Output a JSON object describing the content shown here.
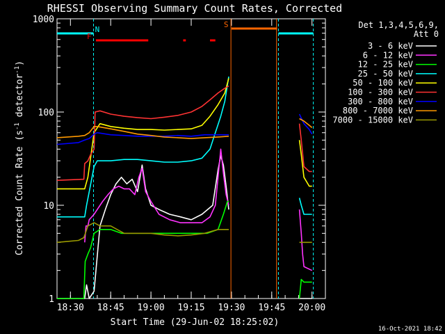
{
  "chart_data": {
    "type": "line",
    "title": "RHESSI Observing Summary Count Rates, Corrected",
    "xlabel": "Start Time (29-Jun-02 18:25:02)",
    "ylabel": "Corrected Count Rate (s⁻¹ detector⁻¹)",
    "ylabel_parts": {
      "main": "Corrected Count Rate (s",
      "exp1": "-1",
      "mid": " detector",
      "exp2": "-1",
      "end": ")"
    },
    "y_scale": "log",
    "ylim": [
      1,
      1000
    ],
    "xlim_minutes_after_1825": [
      0,
      100
    ],
    "x_ticks": [
      {
        "label": "18:30",
        "t": 5
      },
      {
        "label": "18:45",
        "t": 20
      },
      {
        "label": "19:00",
        "t": 35
      },
      {
        "label": "19:15",
        "t": 50
      },
      {
        "label": "19:30",
        "t": 65
      },
      {
        "label": "19:45",
        "t": 80
      },
      {
        "label": "20:00",
        "t": 95
      }
    ],
    "y_ticks": [
      {
        "label": "1",
        "v": 1
      },
      {
        "label": "10",
        "v": 10
      },
      {
        "label": "100",
        "v": 100
      },
      {
        "label": "1000",
        "v": 1000
      }
    ],
    "legend": {
      "header": [
        "Det 1,3,4,5,6,9,",
        "Att 0"
      ],
      "placement": "right"
    },
    "series": [
      {
        "name": "3 - 6 keV",
        "color": "#ffffff",
        "points": [
          [
            0,
            1
          ],
          [
            10.3,
            1
          ],
          [
            11,
            1.4
          ],
          [
            12,
            1
          ],
          [
            13.8,
            1.2
          ],
          [
            14.5,
            2
          ],
          [
            16,
            6
          ],
          [
            18,
            9
          ],
          [
            20,
            13
          ],
          [
            22,
            17
          ],
          [
            24,
            20
          ],
          [
            26,
            17
          ],
          [
            28,
            19
          ],
          [
            30,
            14
          ],
          [
            31.7,
            27
          ],
          [
            33,
            15
          ],
          [
            35,
            10
          ],
          [
            38,
            9
          ],
          [
            42,
            8
          ],
          [
            46,
            7.5
          ],
          [
            50,
            7
          ],
          [
            54,
            8
          ],
          [
            58,
            10
          ],
          [
            60,
            24
          ],
          [
            61,
            34
          ],
          [
            62,
            27
          ],
          [
            63,
            16
          ],
          [
            64,
            9
          ]
        ]
      },
      {
        "name": "6 - 12 keV",
        "color": "#ff33ff",
        "points": [
          [
            10.3,
            4
          ],
          [
            10.8,
            6
          ],
          [
            11.5,
            6
          ],
          [
            12,
            7
          ],
          [
            13.8,
            8
          ],
          [
            15,
            9
          ],
          [
            17,
            11
          ],
          [
            19,
            13
          ],
          [
            21,
            15
          ],
          [
            23,
            16
          ],
          [
            25,
            15
          ],
          [
            27,
            15
          ],
          [
            29,
            13
          ],
          [
            30.5,
            20
          ],
          [
            31.7,
            25
          ],
          [
            33,
            14
          ],
          [
            35,
            11
          ],
          [
            38,
            8
          ],
          [
            42,
            7
          ],
          [
            46,
            6.5
          ],
          [
            50,
            6.5
          ],
          [
            54,
            6.5
          ],
          [
            57,
            7.5
          ],
          [
            59,
            10
          ],
          [
            60,
            20
          ],
          [
            61,
            40
          ],
          [
            62,
            22
          ],
          [
            63,
            13
          ],
          [
            64,
            10
          ]
        ]
      },
      {
        "name": "12 - 25 keV",
        "color": "#00ff00",
        "points": [
          [
            0,
            1
          ],
          [
            10,
            1
          ],
          [
            10.5,
            2.5
          ],
          [
            11.5,
            3
          ],
          [
            12.5,
            3.5
          ],
          [
            13.8,
            5
          ],
          [
            16,
            5.5
          ],
          [
            20,
            5.5
          ],
          [
            24,
            5
          ],
          [
            28,
            5
          ],
          [
            32,
            5
          ],
          [
            36,
            5
          ],
          [
            40,
            5
          ],
          [
            44,
            5
          ],
          [
            48,
            5
          ],
          [
            52,
            5
          ],
          [
            56,
            5
          ],
          [
            60,
            5.5
          ],
          [
            62,
            8
          ],
          [
            63.5,
            11
          ],
          [
            64,
            11
          ]
        ]
      },
      {
        "name": "25 - 50 keV",
        "color": "#00ffff",
        "points": [
          [
            0,
            7.5
          ],
          [
            8,
            7.5
          ],
          [
            10.3,
            7.5
          ],
          [
            11,
            10
          ],
          [
            11.8,
            13
          ],
          [
            13.8,
            26
          ],
          [
            15,
            30
          ],
          [
            20,
            30
          ],
          [
            25,
            31
          ],
          [
            30,
            31
          ],
          [
            35,
            30
          ],
          [
            40,
            29
          ],
          [
            45,
            29
          ],
          [
            50,
            30
          ],
          [
            54,
            32
          ],
          [
            57,
            40
          ],
          [
            59,
            60
          ],
          [
            61,
            90
          ],
          [
            62.5,
            130
          ],
          [
            64,
            240
          ]
        ]
      },
      {
        "name": "50 - 100 keV",
        "color": "#ffff00",
        "points": [
          [
            0,
            15
          ],
          [
            10,
            15
          ],
          [
            10.3,
            15
          ],
          [
            11.5,
            20
          ],
          [
            13.8,
            60
          ],
          [
            16,
            75
          ],
          [
            20,
            70
          ],
          [
            25,
            67
          ],
          [
            30,
            65
          ],
          [
            35,
            65
          ],
          [
            40,
            64
          ],
          [
            45,
            65
          ],
          [
            50,
            66
          ],
          [
            54,
            72
          ],
          [
            57,
            90
          ],
          [
            60,
            120
          ],
          [
            62.5,
            160
          ],
          [
            64,
            230
          ]
        ]
      },
      {
        "name": "100 - 300 keV",
        "color": "#ff3333",
        "points": [
          [
            0,
            18.5
          ],
          [
            10,
            19
          ],
          [
            10.3,
            28
          ],
          [
            11.5,
            30
          ],
          [
            12.5,
            35
          ],
          [
            13.8,
            40
          ],
          [
            14.2,
            100
          ],
          [
            16,
            103
          ],
          [
            20,
            95
          ],
          [
            25,
            90
          ],
          [
            30,
            87
          ],
          [
            35,
            85
          ],
          [
            40,
            88
          ],
          [
            45,
            92
          ],
          [
            50,
            100
          ],
          [
            54,
            115
          ],
          [
            57,
            135
          ],
          [
            60,
            160
          ],
          [
            62.5,
            180
          ],
          [
            64,
            190
          ]
        ]
      },
      {
        "name": "300 - 800 keV",
        "color": "#0000ff",
        "points": [
          [
            0,
            45
          ],
          [
            8,
            47
          ],
          [
            10.3,
            50
          ],
          [
            12,
            52
          ],
          [
            13.8,
            58
          ],
          [
            15,
            60
          ],
          [
            20,
            57
          ],
          [
            25,
            56
          ],
          [
            30,
            55
          ],
          [
            35,
            55
          ],
          [
            40,
            55
          ],
          [
            45,
            56
          ],
          [
            50,
            55
          ],
          [
            55,
            57
          ],
          [
            60,
            57
          ],
          [
            64,
            57
          ]
        ]
      },
      {
        "name": "800 - 7000 keV",
        "color": "#ff9900",
        "points": [
          [
            0,
            53
          ],
          [
            8,
            55
          ],
          [
            10.3,
            56
          ],
          [
            12,
            60
          ],
          [
            13.8,
            70
          ],
          [
            15,
            70
          ],
          [
            20,
            66
          ],
          [
            25,
            62
          ],
          [
            30,
            58
          ],
          [
            35,
            56
          ],
          [
            40,
            54
          ],
          [
            45,
            53
          ],
          [
            50,
            52
          ],
          [
            55,
            53
          ],
          [
            60,
            54
          ],
          [
            64,
            55
          ]
        ]
      },
      {
        "name": "7000 - 15000 keV",
        "color": "#999900",
        "points": [
          [
            0,
            4
          ],
          [
            4,
            4.1
          ],
          [
            8,
            4.2
          ],
          [
            10,
            4.5
          ],
          [
            11.5,
            6
          ],
          [
            13.8,
            6.5
          ],
          [
            16,
            6
          ],
          [
            20,
            6
          ],
          [
            25,
            5
          ],
          [
            30,
            5
          ],
          [
            35,
            5
          ],
          [
            40,
            4.8
          ],
          [
            45,
            4.7
          ],
          [
            50,
            4.8
          ],
          [
            55,
            5
          ],
          [
            60,
            5.5
          ],
          [
            64,
            5.5
          ]
        ]
      }
    ],
    "series_after_gap": [
      {
        "name": "3 - 6 keV",
        "points": [
          [
            90.3,
            1
          ],
          [
            91,
            1
          ],
          [
            92,
            1
          ],
          [
            95,
            1
          ]
        ]
      },
      {
        "name": "6 - 12 keV",
        "points": [
          [
            90.3,
            9
          ],
          [
            91,
            5
          ],
          [
            91.5,
            3
          ],
          [
            92,
            2.2
          ],
          [
            95,
            2
          ]
        ]
      },
      {
        "name": "12 - 25 keV",
        "points": [
          [
            90.3,
            1
          ],
          [
            91,
            1.6
          ],
          [
            92,
            1.5
          ],
          [
            95,
            1.5
          ]
        ]
      },
      {
        "name": "25 - 50 keV",
        "points": [
          [
            90.3,
            12
          ],
          [
            91,
            10
          ],
          [
            92,
            8
          ],
          [
            95,
            8
          ]
        ]
      },
      {
        "name": "50 - 100 keV",
        "points": [
          [
            90.3,
            50
          ],
          [
            91,
            35
          ],
          [
            92,
            20
          ],
          [
            94,
            16
          ],
          [
            95,
            16
          ]
        ]
      },
      {
        "name": "100 - 300 keV",
        "points": [
          [
            90.3,
            75
          ],
          [
            91,
            50
          ],
          [
            92,
            26
          ],
          [
            94,
            23
          ],
          [
            95,
            23
          ]
        ]
      },
      {
        "name": "300 - 800 keV",
        "points": [
          [
            90.3,
            95
          ],
          [
            92,
            75
          ],
          [
            94,
            65
          ],
          [
            95,
            58
          ]
        ]
      },
      {
        "name": "800 - 7000 keV",
        "points": [
          [
            90.3,
            85
          ],
          [
            92,
            80
          ],
          [
            94,
            72
          ],
          [
            95,
            68
          ]
        ]
      },
      {
        "name": "7000 - 15000 keV",
        "points": [
          [
            90.3,
            4
          ],
          [
            92,
            4
          ],
          [
            95,
            4
          ]
        ]
      }
    ],
    "flags": [
      {
        "label": "N",
        "color": "#00ffff",
        "label_t": 15,
        "segments": [
          [
            0,
            13.6
          ],
          [
            82.5,
            95.5
          ]
        ],
        "level": "top"
      },
      {
        "label": "F",
        "color": "#ff0000",
        "label_t": 12,
        "segments": [
          [
            14.5,
            34
          ],
          [
            47,
            48
          ],
          [
            57,
            59
          ]
        ],
        "level": "upper"
      },
      {
        "label": "S",
        "color": "#ff6600",
        "label_t": 63,
        "segments": [
          [
            65,
            82
          ]
        ],
        "level": "mid"
      }
    ],
    "vlines": [
      {
        "t": 13.6,
        "color": "#00ffff",
        "style": "dashed"
      },
      {
        "t": 64.8,
        "color": "#ff6600",
        "style": "solid"
      },
      {
        "t": 81.8,
        "color": "#ff6600",
        "style": "solid"
      },
      {
        "t": 82.5,
        "color": "#00ffff",
        "style": "dashed"
      },
      {
        "t": 95.5,
        "color": "#00ffff",
        "style": "dashed"
      }
    ],
    "grid": false
  },
  "footer": {
    "timestamp": "16-Oct-2021 18:42"
  }
}
